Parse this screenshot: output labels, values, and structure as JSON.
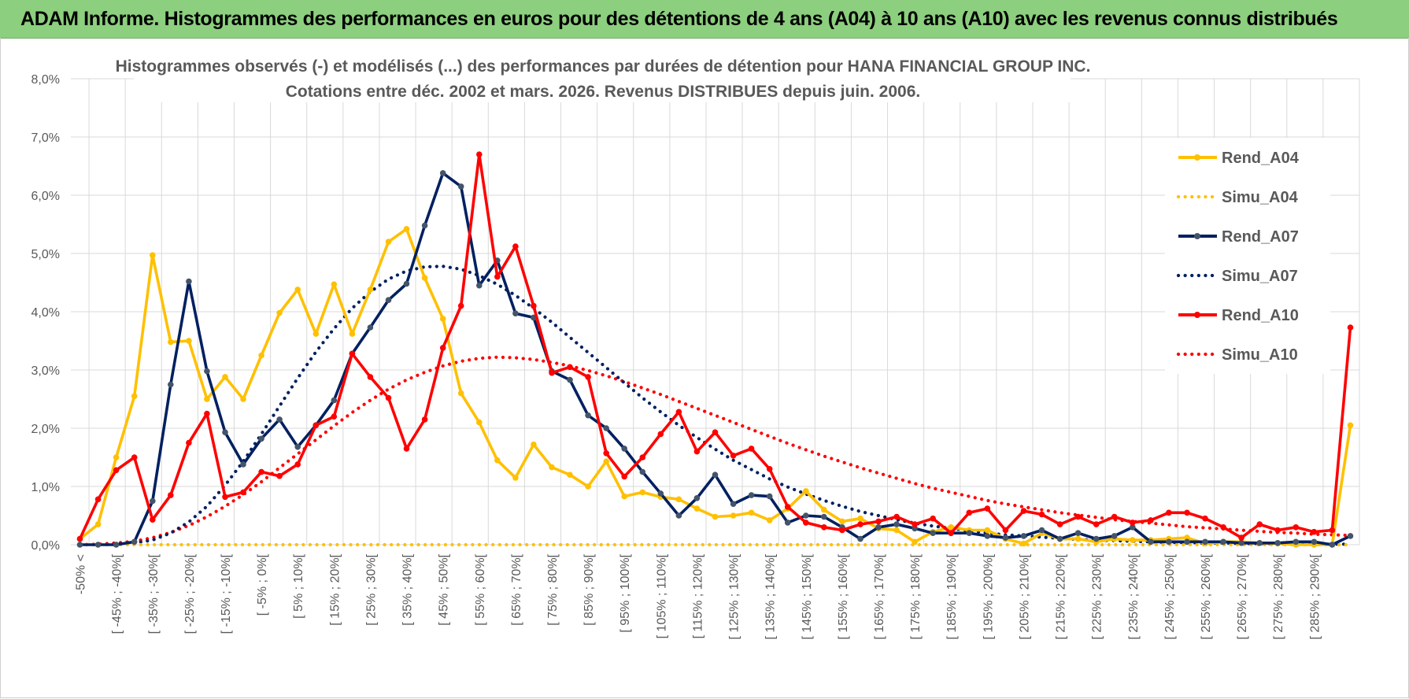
{
  "banner": {
    "title": "ADAM Informe. Histogrammes des performances en euros pour des détentions de 4 ans (A04) à 10 ans (A10) avec les revenus connus distribués"
  },
  "colors": {
    "banner_bg": "#8ccf7e",
    "A04": "#ffc000",
    "A07": "#002060",
    "A10": "#ff0000",
    "marker_A07": "#44546a",
    "grid": "#d9d9d9"
  },
  "chart_data": {
    "type": "line",
    "title_lines": [
      "Histogrammes observés (-) et modélisés (...) des performances par durées de détention pour HANA FINANCIAL GROUP INC.",
      "Cotations entre déc. 2002 et mars. 2026. Revenus DISTRIBUES depuis juin. 2006."
    ],
    "ylim": [
      0,
      8
    ],
    "y_ticks": [
      "0,0%",
      "1,0%",
      "2,0%",
      "3,0%",
      "4,0%",
      "5,0%",
      "6,0%",
      "7,0%",
      "8,0%"
    ],
    "y_unit": "percent",
    "grid": true,
    "legend_position": "right",
    "categories": [
      "-50% <",
      "[ -50% ; -45%[",
      "[ -45% ; -40%[",
      "[ -40% ; -35%[",
      "[ -35% ; -30%[",
      "[ -30% ; -25%[",
      "[ -25% ; -20%[",
      "[ -20% ; -15%[",
      "[ -15% ; -10%[",
      "[ -10% ; -5%[",
      "[ -5% ; 0%[",
      "[ 0% ; 5%[",
      "[ 5% ; 10%[",
      "[ 10% ; 15%[",
      "[ 15% ; 20%[",
      "[ 20% ; 25%[",
      "[ 25% ; 30%[",
      "[ 30% ; 35%[",
      "[ 35% ; 40%[",
      "[ 40% ; 45%[",
      "[ 45% ; 50%[",
      "[ 50% ; 55%[",
      "[ 55% ; 60%[",
      "[ 60% ; 65%[",
      "[ 65% ; 70%[",
      "[ 70% ; 75%[",
      "[ 75% ; 80%[",
      "[ 80% ; 85%[",
      "[ 85% ; 90%[",
      "[ 90% ; 95%[",
      "[ 95% ; 100%[",
      "[ 100% ; 105%[",
      "[ 105% ; 110%[",
      "[ 110% ; 115%[",
      "[ 115% ; 120%[",
      "[ 120% ; 125%[",
      "[ 125% ; 130%[",
      "[ 130% ; 135%[",
      "[ 135% ; 140%[",
      "[ 140% ; 145%[",
      "[ 145% ; 150%[",
      "[ 150% ; 155%[",
      "[ 155% ; 160%[",
      "[ 160% ; 165%[",
      "[ 165% ; 170%[",
      "[ 170% ; 175%[",
      "[ 175% ; 180%[",
      "[ 180% ; 185%[",
      "[ 185% ; 190%[",
      "[ 190% ; 195%[",
      "[ 195% ; 200%[",
      "[ 200% ; 205%[",
      "[ 205% ; 210%[",
      "[ 210% ; 215%[",
      "[ 215% ; 220%[",
      "[ 220% ; 225%[",
      "[ 225% ; 230%[",
      "[ 230% ; 235%[",
      "[ 235% ; 240%[",
      "[ 240% ; 245%[",
      "[ 245% ; 250%[",
      "[ 250% ; 255%[",
      "[ 255% ; 260%[",
      "[ 260% ; 265%[",
      "[ 265% ; 270%[",
      "[ 270% ; 275%[",
      "[ 275% ; 280%[",
      "[ 280% ; 285%[",
      "[ 285% ; 290%[",
      "[ 290% ; 295%[",
      "[ 295% ; 300%["
    ],
    "shown_category_labels": [
      "-50% <",
      "[ -45% ; -40%[",
      "[ -35% ; -30%[",
      "[ -25% ; -20%[",
      "[ -15% ; -10%[",
      "[ -5% ; 0%[",
      "[ 5% ; 10%[",
      "[ 15% ; 20%[",
      "[ 25% ; 30%[",
      "[ 35% ; 40%[",
      "[ 45% ; 50%[",
      "[ 55% ; 60%[",
      "[ 65% ; 70%[",
      "[ 75% ; 80%[",
      "[ 85% ; 90%[",
      "[ 95% ; 100%[",
      "[ 105% ; 110%[",
      "[ 115% ; 120%[",
      "[ 125% ; 130%[",
      "[ 135% ; 140%[",
      "[ 145% ; 150%[",
      "[ 155% ; 160%[",
      "[ 165% ; 170%[",
      "[ 175% ; 180%[",
      "[ 185% ; 190%[",
      "[ 195% ; 200%[",
      "[ 205% ; 210%[",
      "[ 215% ; 220%[",
      "[ 225% ; 230%[",
      "[ 235% ; 240%[",
      "[ 245% ; 250%[",
      "[ 255% ; 260%[",
      "[ 265% ; 270%[",
      "[ 275% ; 280%[",
      "[ 285% ; 290%["
    ],
    "series": [
      {
        "name": "Rend_A04",
        "style": "solid",
        "color": "#ffc000",
        "marker": true,
        "values": [
          0.1,
          0.35,
          1.5,
          2.55,
          4.97,
          3.48,
          3.5,
          2.5,
          2.88,
          2.5,
          3.25,
          3.98,
          4.38,
          3.62,
          4.47,
          3.62,
          4.38,
          5.2,
          5.42,
          4.58,
          3.88,
          2.6,
          2.1,
          1.45,
          1.15,
          1.72,
          1.33,
          1.2,
          1.0,
          1.43,
          0.83,
          0.9,
          0.82,
          0.78,
          0.62,
          0.48,
          0.5,
          0.55,
          0.42,
          0.62,
          0.92,
          0.6,
          0.4,
          0.45,
          0.28,
          0.25,
          0.05,
          0.22,
          0.3,
          0.25,
          0.25,
          0.1,
          0.02,
          0.2,
          0.1,
          0.1,
          0.05,
          0.1,
          0.08,
          0.08,
          0.1,
          0.12,
          0.02,
          0.05,
          0.05,
          0.03,
          0.02,
          0.0,
          0.0,
          0.0,
          2.05
        ]
      },
      {
        "name": "Simu_A04",
        "style": "dotted",
        "color": "#ffc000",
        "marker": false,
        "values": [
          0,
          0,
          0,
          0,
          0,
          0,
          0,
          0,
          0,
          0,
          0,
          0,
          0,
          0,
          0,
          0,
          0,
          0,
          0,
          0,
          0,
          0,
          0,
          0,
          0,
          0,
          0,
          0,
          0,
          0,
          0,
          0,
          0,
          0,
          0,
          0,
          0,
          0,
          0,
          0,
          0,
          0,
          0,
          0,
          0,
          0,
          0,
          0,
          0,
          0,
          0,
          0,
          0,
          0,
          0,
          0,
          0,
          0,
          0,
          0,
          0,
          0,
          0,
          0,
          0,
          0,
          0,
          0,
          0,
          0,
          0
        ]
      },
      {
        "name": "Rend_A07",
        "style": "solid",
        "color": "#002060",
        "marker": true,
        "values": [
          0.0,
          0.0,
          0.0,
          0.05,
          0.75,
          2.75,
          4.52,
          2.98,
          1.93,
          1.38,
          1.82,
          2.15,
          1.68,
          2.05,
          2.48,
          3.28,
          3.73,
          4.2,
          4.48,
          5.48,
          6.38,
          6.15,
          4.45,
          4.88,
          3.97,
          3.9,
          2.98,
          2.83,
          2.22,
          2.0,
          1.65,
          1.25,
          0.88,
          0.5,
          0.8,
          1.2,
          0.7,
          0.85,
          0.83,
          0.38,
          0.5,
          0.48,
          0.3,
          0.1,
          0.3,
          0.35,
          0.28,
          0.2,
          0.2,
          0.2,
          0.15,
          0.12,
          0.15,
          0.25,
          0.1,
          0.2,
          0.1,
          0.15,
          0.3,
          0.05,
          0.05,
          0.05,
          0.05,
          0.05,
          0.03,
          0.03,
          0.03,
          0.05,
          0.05,
          0.0,
          0.15
        ]
      },
      {
        "name": "Simu_A07",
        "style": "dotted",
        "color": "#002060",
        "marker": false,
        "values": [
          0.0,
          0.0,
          0.01,
          0.03,
          0.08,
          0.2,
          0.39,
          0.66,
          1.02,
          1.43,
          1.9,
          2.38,
          2.86,
          3.31,
          3.71,
          4.06,
          4.34,
          4.56,
          4.7,
          4.77,
          4.78,
          4.73,
          4.62,
          4.47,
          4.28,
          4.06,
          3.82,
          3.56,
          3.3,
          3.04,
          2.78,
          2.52,
          2.28,
          2.05,
          1.84,
          1.64,
          1.45,
          1.29,
          1.13,
          0.99,
          0.87,
          0.76,
          0.66,
          0.57,
          0.5,
          0.43,
          0.37,
          0.32,
          0.28,
          0.24,
          0.2,
          0.17,
          0.15,
          0.13,
          0.11,
          0.09,
          0.08,
          0.07,
          0.06,
          0.05,
          0.04,
          0.04,
          0.03,
          0.03,
          0.02,
          0.02,
          0.02,
          0.01,
          0.01,
          0.01,
          0.01
        ]
      },
      {
        "name": "Rend_A10",
        "style": "solid",
        "color": "#ff0000",
        "marker": true,
        "values": [
          0.1,
          0.78,
          1.28,
          1.5,
          0.43,
          0.85,
          1.75,
          2.25,
          0.82,
          0.9,
          1.25,
          1.18,
          1.38,
          2.05,
          2.2,
          3.28,
          2.88,
          2.52,
          1.65,
          2.15,
          3.38,
          4.1,
          6.7,
          4.6,
          5.12,
          4.1,
          2.95,
          3.05,
          2.88,
          1.57,
          1.17,
          1.5,
          1.9,
          2.28,
          1.6,
          1.93,
          1.53,
          1.65,
          1.3,
          0.65,
          0.38,
          0.3,
          0.25,
          0.35,
          0.4,
          0.48,
          0.35,
          0.45,
          0.2,
          0.55,
          0.62,
          0.25,
          0.58,
          0.52,
          0.35,
          0.48,
          0.35,
          0.48,
          0.38,
          0.42,
          0.55,
          0.55,
          0.45,
          0.3,
          0.12,
          0.35,
          0.25,
          0.3,
          0.22,
          0.25,
          3.73
        ]
      },
      {
        "name": "Simu_A10",
        "style": "dotted",
        "color": "#ff0000",
        "marker": false,
        "values": [
          0.0,
          0.01,
          0.03,
          0.06,
          0.12,
          0.21,
          0.33,
          0.48,
          0.66,
          0.86,
          1.08,
          1.32,
          1.56,
          1.8,
          2.04,
          2.27,
          2.48,
          2.67,
          2.83,
          2.96,
          3.07,
          3.15,
          3.2,
          3.22,
          3.21,
          3.18,
          3.13,
          3.07,
          2.99,
          2.9,
          2.8,
          2.69,
          2.58,
          2.46,
          2.34,
          2.22,
          2.1,
          1.98,
          1.86,
          1.74,
          1.63,
          1.52,
          1.42,
          1.32,
          1.23,
          1.14,
          1.05,
          0.97,
          0.9,
          0.83,
          0.76,
          0.7,
          0.65,
          0.6,
          0.55,
          0.51,
          0.47,
          0.43,
          0.4,
          0.37,
          0.34,
          0.31,
          0.29,
          0.27,
          0.25,
          0.23,
          0.21,
          0.2,
          0.18,
          0.17,
          0.16
        ]
      }
    ]
  }
}
